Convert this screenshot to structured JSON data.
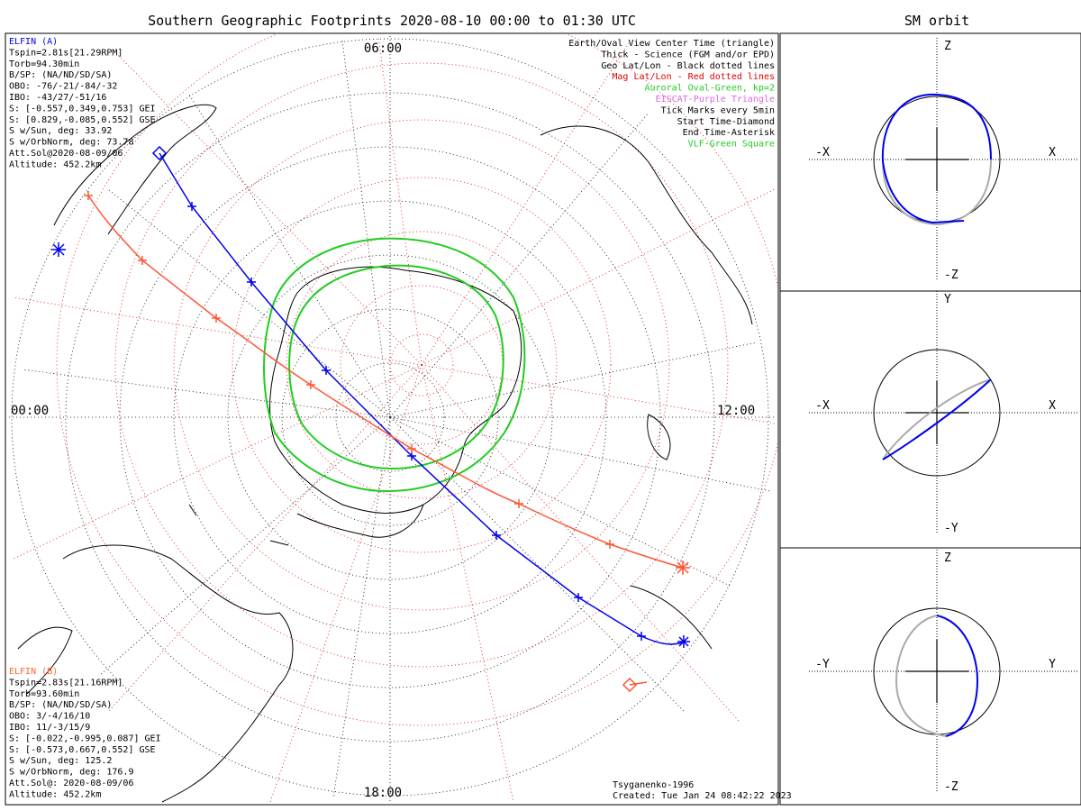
{
  "title": "Southern Geographic Footprints 2020-08-10 00:00 to 01:30 UTC",
  "side_title": "SM orbit",
  "map": {
    "hour_labels": {
      "top": "06:00",
      "left": "00:00",
      "right": "12:00",
      "bottom": "18:00"
    },
    "legend": [
      {
        "text": "Earth/Oval View Center Time (triangle)",
        "color": "#000000"
      },
      {
        "text": "Thick - Science (FGM and/or EPD)",
        "color": "#000000"
      },
      {
        "text": "Geo Lat/Lon - Black dotted lines",
        "color": "#000000"
      },
      {
        "text": "Mag Lat/Lon - Red dotted lines",
        "color": "#e00000"
      },
      {
        "text": "Auroral Oval-Green, kp=2",
        "color": "#22cc22"
      },
      {
        "text": "EISCAT-Purple Triangle",
        "color": "#dd66dd"
      },
      {
        "text": "Tick Marks every 5min",
        "color": "#000000"
      },
      {
        "text": "Start Time-Diamond",
        "color": "#000000"
      },
      {
        "text": "End Time-Asterisk",
        "color": "#000000"
      },
      {
        "text": "VLF-Green Square",
        "color": "#22cc22"
      }
    ],
    "elfin_a": {
      "color": "#0000ee",
      "lines": [
        "ELFIN (A)",
        "Tspin=2.81s[21.29RPM]",
        "Torb=94.30min",
        "B/SP: (NA/ND/SD/SA)",
        "OBO: -76/-21/-84/-32",
        "IBO: -43/27/-51/16",
        "S: [-0.557,0.349,0.753] GEI",
        "S: [0.829,-0.085,0.552] GSE",
        "S w/Sun, deg: 33.92",
        "S w/OrbNorm, deg: 73.78",
        "Att.Sol@2020-08-09/06",
        "Altitude: 452.2km"
      ]
    },
    "elfin_b": {
      "color": "#ff6633",
      "lines": [
        "ELFIN (B)",
        "Tspin=2.83s[21.16RPM]",
        "Torb=93.60min",
        "B/SP: (NA/ND/SD/SA)",
        "OBO: 3/-4/16/10",
        "IBO: 11/-3/15/9",
        "S: [-0.022,-0.995,0.087] GEI",
        "S: [-0.573,0.667,0.552] GSE",
        "S w/Sun, deg: 125.2",
        "S w/OrbNorm, deg: 176.9",
        "Att.Sol@: 2020-08-09/06",
        "Altitude: 452.2km"
      ]
    },
    "credits": [
      "Tsyganenko-1996",
      "Created: Tue Jan 24 08:42:22 2023"
    ],
    "colors": {
      "elfin_a": "#0000ee",
      "elfin_b": "#ff5533",
      "geo_grid": "#000000",
      "mag_grid": "#e00000",
      "oval": "#22cc22"
    }
  },
  "orbit_panels": [
    {
      "top": "Z",
      "bottom": "-Z",
      "left": "-X",
      "right": "X"
    },
    {
      "top": "Y",
      "bottom": "-Y",
      "left": "-X",
      "right": "X"
    },
    {
      "top": "Z",
      "bottom": "-Z",
      "left": "-Y",
      "right": "Y"
    }
  ],
  "chart_data": {
    "type": "map",
    "title": "Southern Geographic Footprints 2020-08-10 00:00 to 01:30 UTC",
    "projection": "south polar stereographic",
    "series": [
      {
        "name": "ELFIN (A)",
        "start_marker": "diamond",
        "end_marker": "asterisk",
        "tick_interval_min": 5
      },
      {
        "name": "ELFIN (B)",
        "start_marker": "diamond",
        "end_marker": "asterisk",
        "tick_interval_min": 5
      }
    ],
    "auroral_oval_kp": 2
  }
}
